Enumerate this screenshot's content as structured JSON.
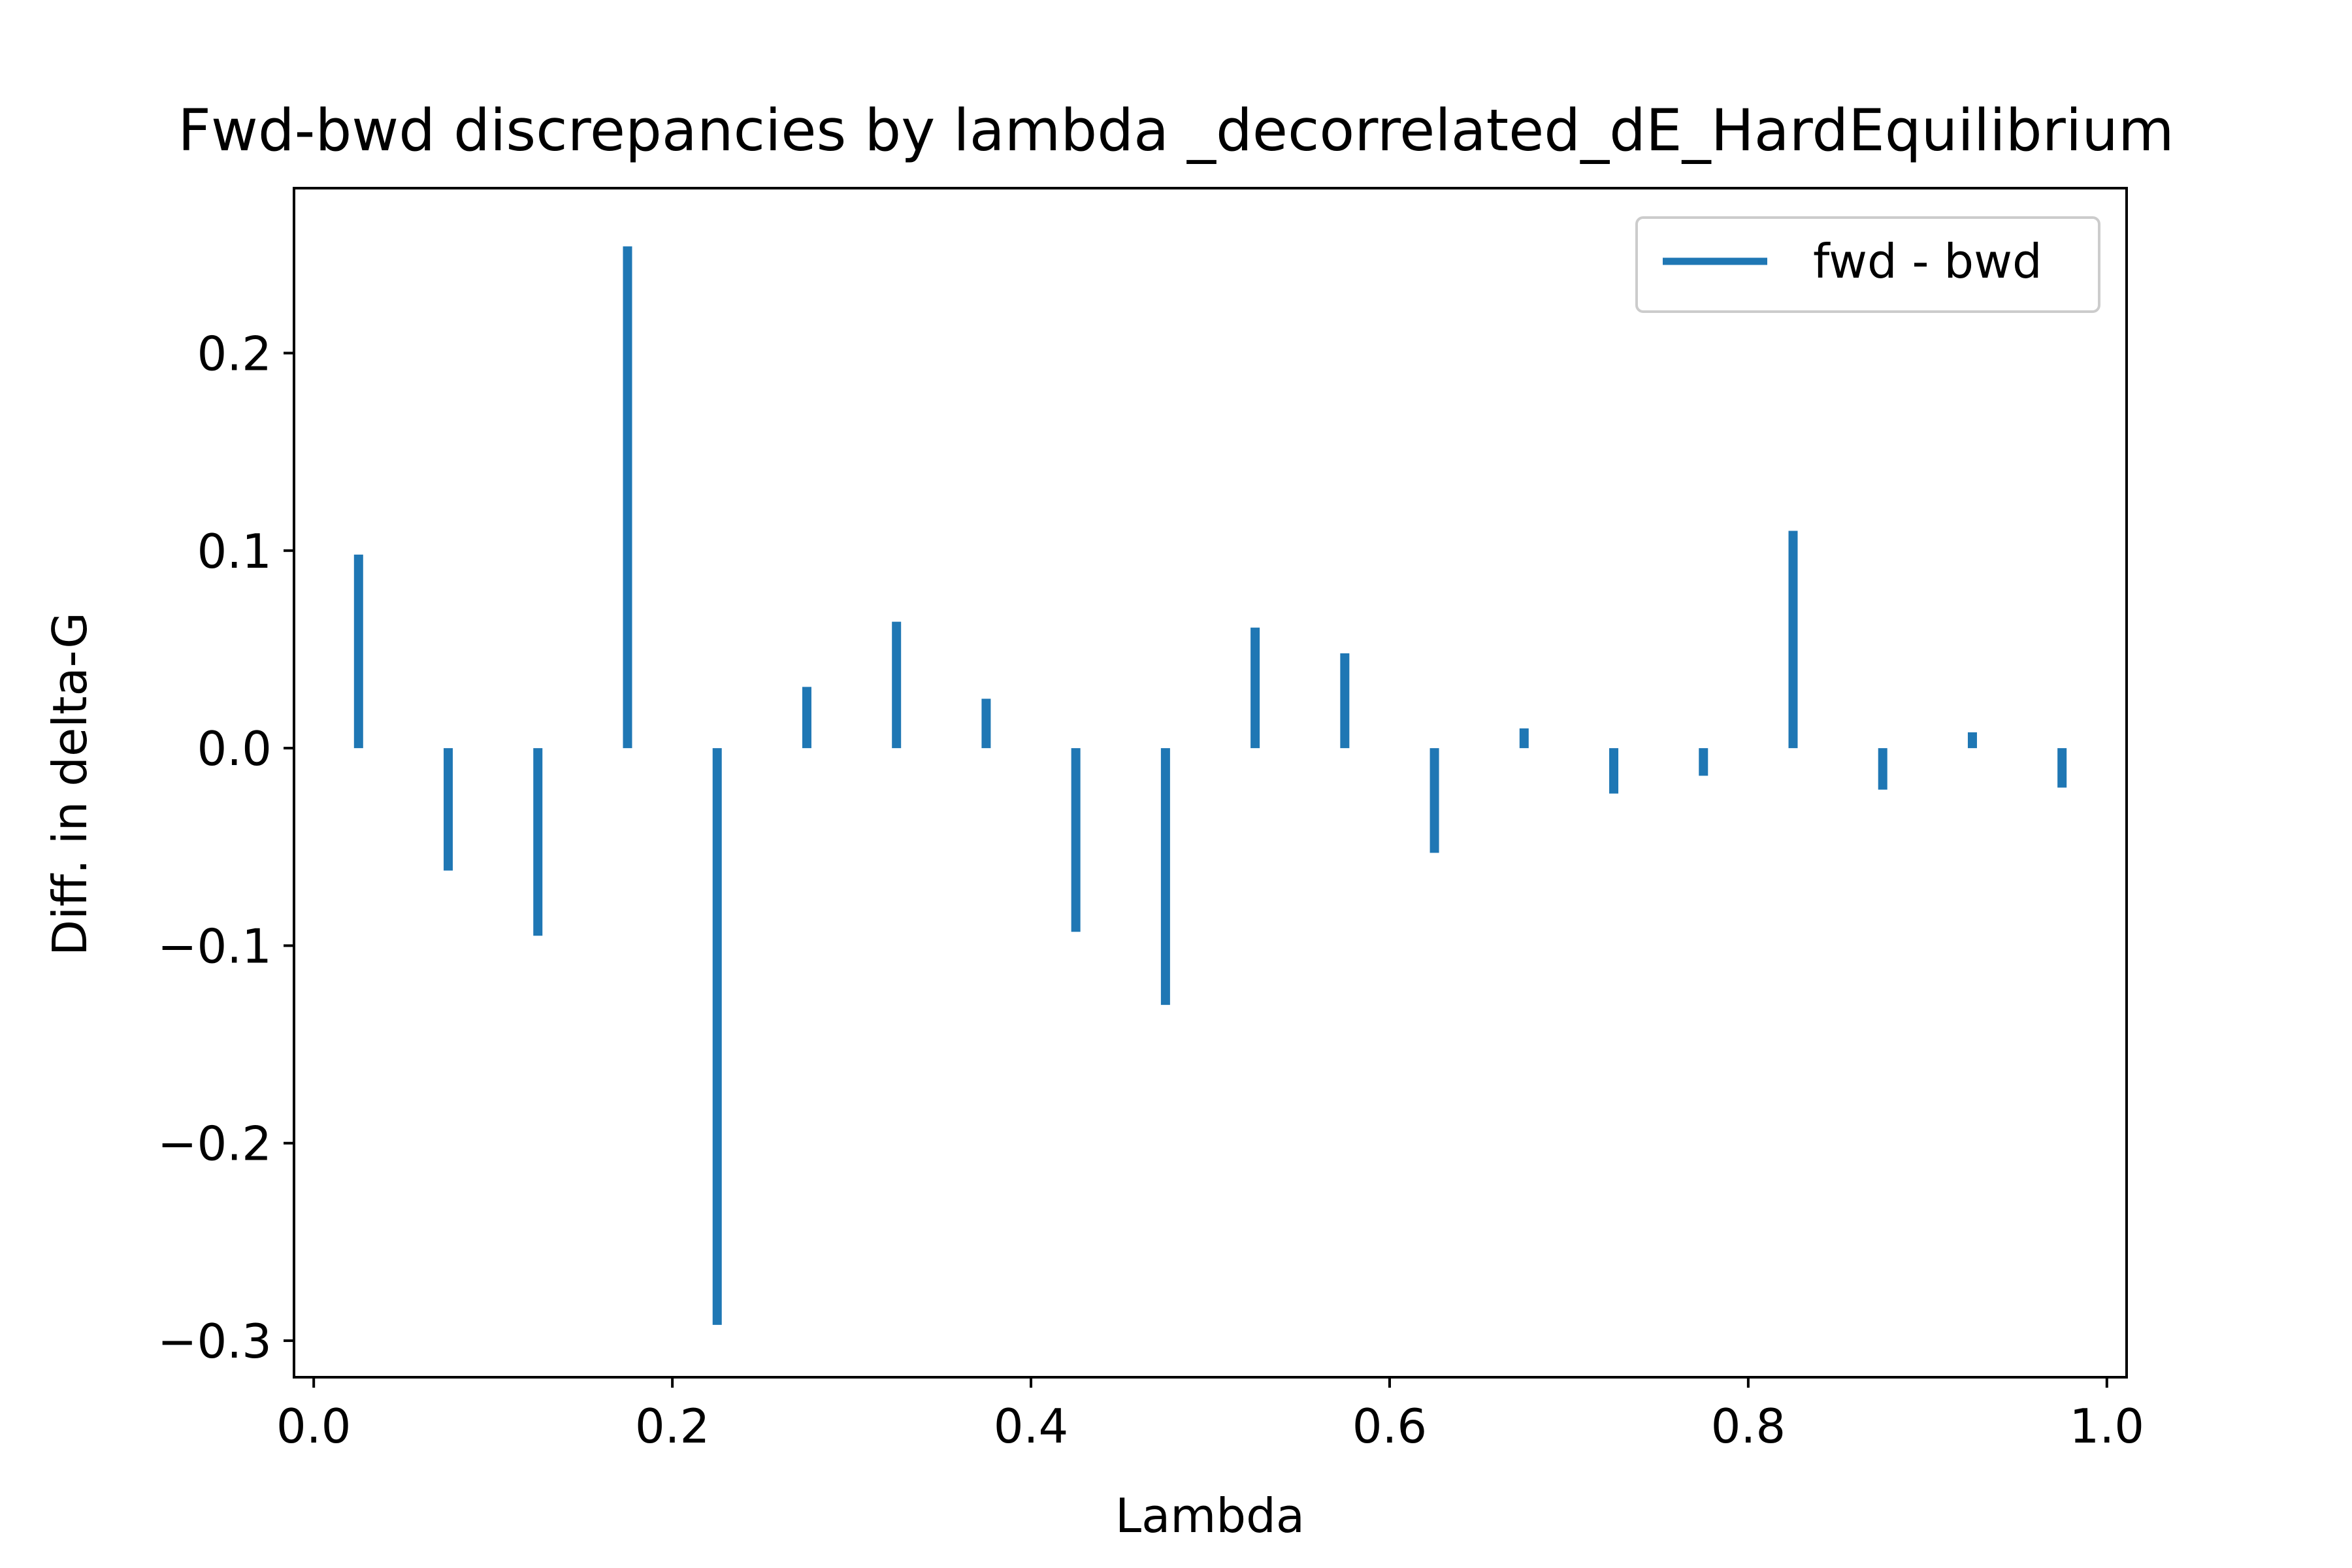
{
  "chart_data": {
    "type": "bar",
    "title": "Fwd-bwd discrepancies by lambda _decorrelated_dE_HardEquilibrium",
    "xlabel": "Lambda",
    "ylabel": "Diff. in delta-G",
    "xlim": [
      -0.011,
      1.011
    ],
    "ylim": [
      -0.3185,
      0.2835
    ],
    "xticks": [
      0.0,
      0.2,
      0.4,
      0.6,
      0.8,
      1.0
    ],
    "xtick_labels": [
      "0.0",
      "0.2",
      "0.4",
      "0.6",
      "0.8",
      "1.0"
    ],
    "yticks": [
      -0.3,
      -0.2,
      -0.1,
      0.0,
      0.1,
      0.2
    ],
    "ytick_labels": [
      "−0.3",
      "−0.2",
      "−0.1",
      "0.0",
      "0.1",
      "0.2"
    ],
    "grid": false,
    "legend_position": "upper right",
    "series": [
      {
        "name": "fwd - bwd",
        "color": "#1f77b4",
        "x": [
          0.025,
          0.075,
          0.125,
          0.175,
          0.225,
          0.275,
          0.325,
          0.375,
          0.425,
          0.475,
          0.525,
          0.575,
          0.625,
          0.675,
          0.725,
          0.775,
          0.825,
          0.875,
          0.925,
          0.975
        ],
        "values": [
          0.098,
          -0.062,
          -0.095,
          0.254,
          -0.292,
          0.031,
          0.064,
          0.025,
          -0.093,
          -0.13,
          0.061,
          0.048,
          -0.053,
          0.01,
          -0.023,
          -0.014,
          0.11,
          -0.021,
          0.008,
          -0.02
        ]
      }
    ]
  }
}
